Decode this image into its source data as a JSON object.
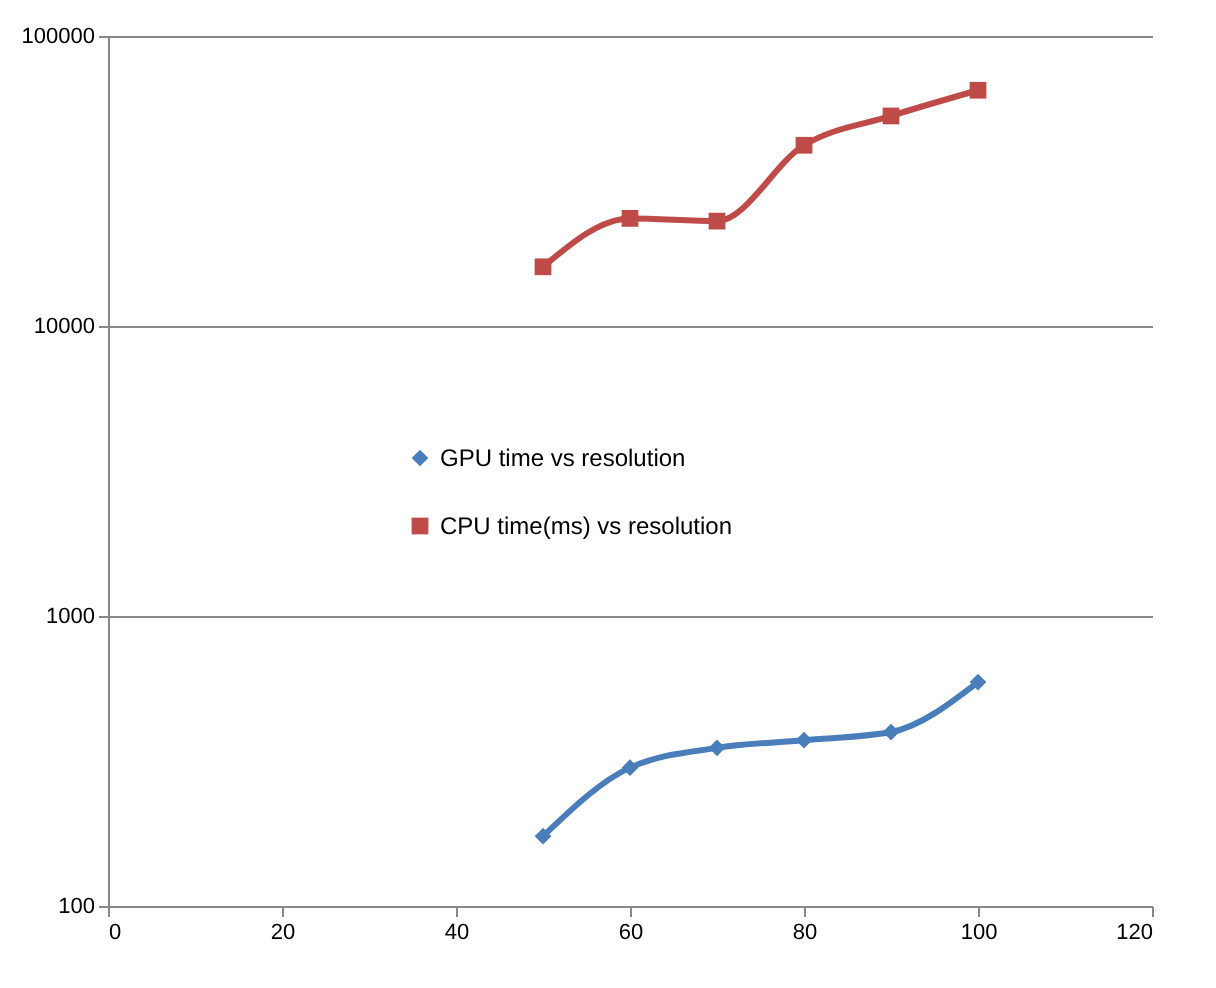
{
  "chart_data": {
    "type": "line",
    "x": [
      50,
      60,
      70,
      80,
      90,
      100
    ],
    "series": [
      {
        "name": "GPU time  vs resolution",
        "color": "#4a7ebb",
        "marker": "diamond",
        "values": [
          174,
          300,
          351,
          373,
          398,
          592
        ]
      },
      {
        "name": "CPU time(ms) vs resolution",
        "color": "#be4b48",
        "marker": "square",
        "values": [
          16000,
          23500,
          23000,
          42000,
          53000,
          65000
        ]
      }
    ],
    "xlim": [
      0,
      120
    ],
    "xticks": [
      0,
      20,
      40,
      60,
      80,
      100,
      120
    ],
    "ylim": [
      100,
      100000
    ],
    "yticks": [
      100,
      1000,
      10000,
      100000
    ],
    "log": "y",
    "grid": "y",
    "legend": "left"
  }
}
